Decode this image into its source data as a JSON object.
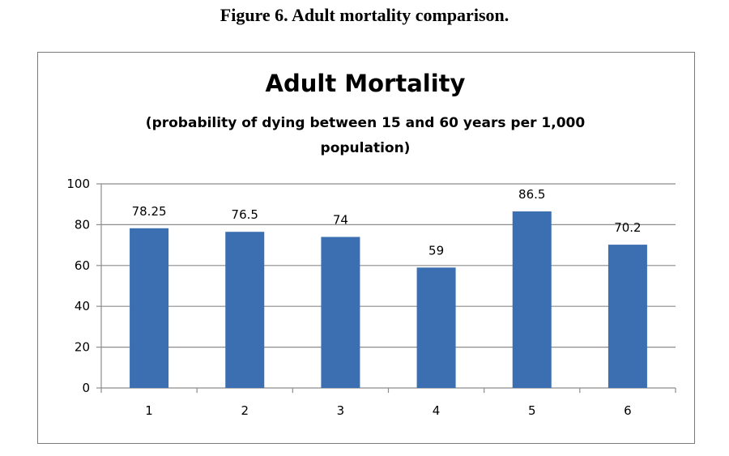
{
  "figure_caption": "Figure 6.  Adult mortality comparison.",
  "colors": {
    "bar": "#3b6fb2",
    "gridline": "#8c8c8c",
    "axis": "#8c8c8c",
    "frame": "#7a7a7a"
  },
  "chart_data": {
    "type": "bar",
    "title": "Adult Mortality",
    "subtitle_line1": "(probability of dying between 15 and 60 years per 1,000",
    "subtitle_line2": "population)",
    "categories": [
      "1",
      "2",
      "3",
      "4",
      "5",
      "6"
    ],
    "values": [
      78.25,
      76.5,
      74,
      59,
      86.5,
      70.2
    ],
    "data_labels": [
      "78.25",
      "76.5",
      "74",
      "59",
      "86.5",
      "70.2"
    ],
    "ylim": [
      0,
      100
    ],
    "yticks": [
      0,
      20,
      40,
      60,
      80,
      100
    ],
    "ytick_labels": [
      "0",
      "20",
      "40",
      "60",
      "80",
      "100"
    ],
    "grid": true,
    "legend": "none",
    "xlabel": "",
    "ylabel": ""
  }
}
